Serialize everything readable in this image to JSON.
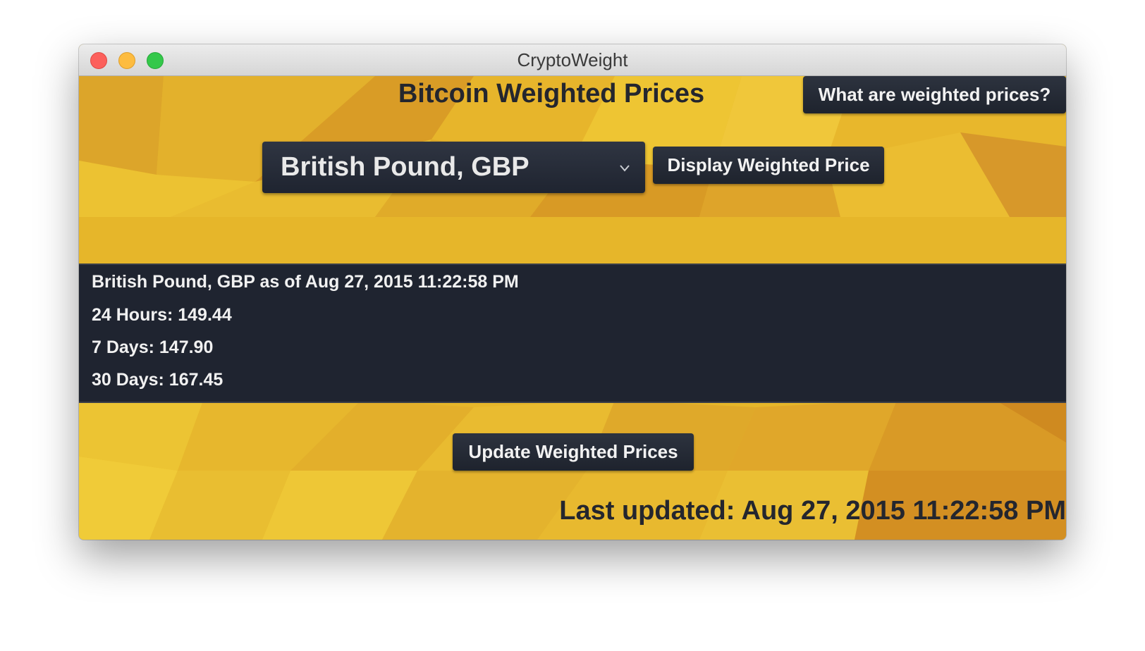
{
  "window": {
    "title": "CryptoWeight"
  },
  "header": {
    "title": "Bitcoin Weighted Prices",
    "help_button": "What are weighted prices?"
  },
  "controls": {
    "currency_selected": "British Pound, GBP",
    "display_button": "Display Weighted Price"
  },
  "prices": {
    "heading": "British Pound, GBP as of Aug 27, 2015 11:22:58 PM",
    "h24": "24 Hours: 149.44",
    "d7": "7 Days: 147.90",
    "d30": "30 Days: 167.45"
  },
  "footer": {
    "update_button": "Update Weighted Prices",
    "last_updated": "Last updated: Aug 27, 2015 11:22:58 PM"
  },
  "colors": {
    "background_gold": "#e8b92a",
    "panel_dark": "#1f2430",
    "button_dark": "#262b36",
    "text_dark": "#24262e"
  }
}
